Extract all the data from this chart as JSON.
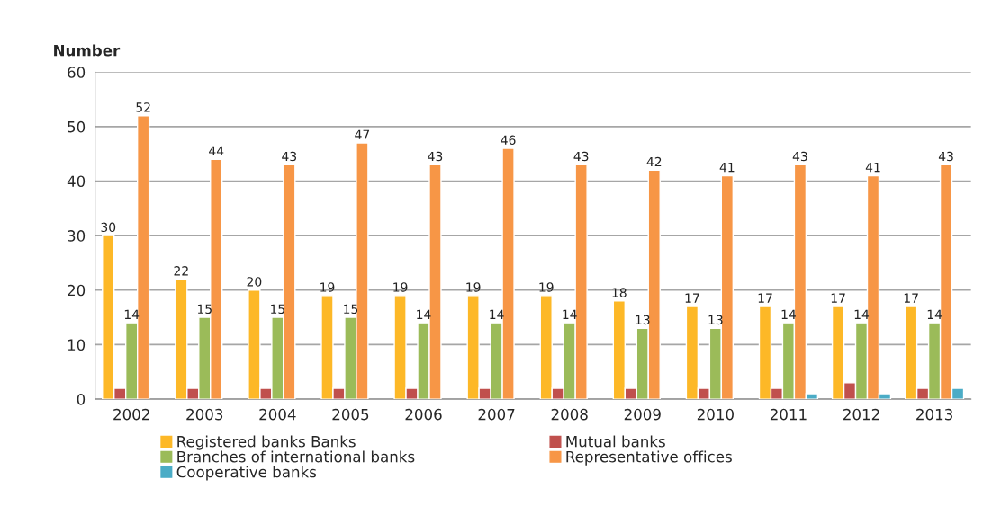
{
  "chart_data": {
    "type": "bar",
    "ylabel": "Number",
    "categories": [
      "2002",
      "2003",
      "2004",
      "2005",
      "2006",
      "2007",
      "2008",
      "2009",
      "2010",
      "2011",
      "2012",
      "2013"
    ],
    "series": [
      {
        "name": "Registered banks Banks",
        "color": "#fdb827",
        "values": [
          30,
          22,
          20,
          19,
          19,
          19,
          19,
          18,
          17,
          17,
          17,
          17
        ],
        "value_labels": [
          "30",
          "22",
          "20",
          "19",
          "19",
          "19",
          "19",
          "18",
          "17",
          "17",
          "17",
          "17"
        ]
      },
      {
        "name": "Mutual banks",
        "color": "#c0504d",
        "values": [
          2,
          2,
          2,
          2,
          2,
          2,
          2,
          2,
          2,
          2,
          3,
          2
        ]
      },
      {
        "name": "Branches of international banks",
        "color": "#9bbb59",
        "values": [
          14,
          15,
          15,
          15,
          14,
          14,
          14,
          13,
          13,
          14,
          14,
          14
        ],
        "value_labels": [
          "14",
          "15",
          "15",
          "15",
          "14",
          "14",
          "14",
          "13",
          "13",
          "14",
          "14",
          "14"
        ]
      },
      {
        "name": "Representative offices",
        "color": "#f79646",
        "values": [
          52,
          44,
          43,
          47,
          43,
          46,
          43,
          42,
          41,
          43,
          41,
          43
        ],
        "value_labels": [
          "52",
          "44",
          "43",
          "47",
          "43",
          "46",
          "43",
          "42",
          "41",
          "43",
          "41",
          "43"
        ]
      },
      {
        "name": "Cooperative banks",
        "color": "#4bacc6",
        "values": [
          null,
          null,
          null,
          null,
          null,
          null,
          null,
          null,
          null,
          1,
          1,
          2
        ]
      }
    ],
    "ylim": [
      0,
      60
    ],
    "yticks": [
      0,
      10,
      20,
      30,
      40,
      50,
      60
    ],
    "grid": "y",
    "legend": "bottom"
  }
}
